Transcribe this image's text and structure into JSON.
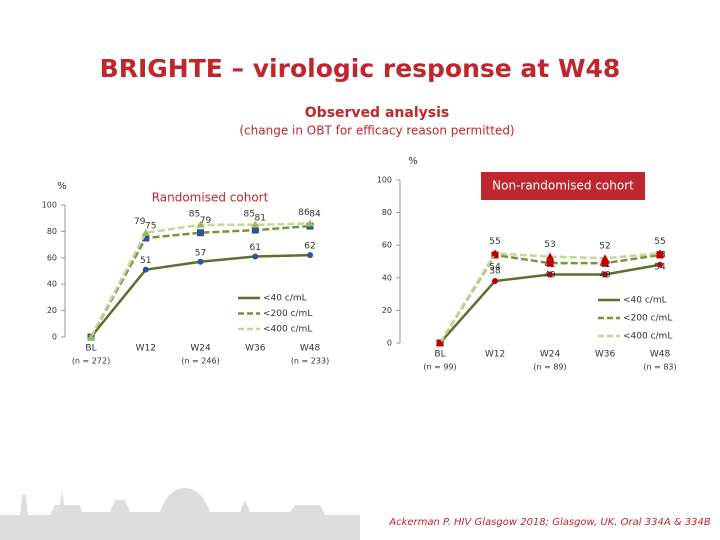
{
  "slide": {
    "title": "BRIGHTE – virologic response at W48",
    "subtitle": "Observed analysis",
    "note": "(change in OBT for efficacy reason permitted)",
    "citation": "Ackerman P. HIV Glasgow 2018; Glasgow, UK. Oral 334A & 334B"
  },
  "chart_data": [
    {
      "type": "line",
      "title": "Randomised cohort",
      "y_label": "%",
      "categories": [
        "BL",
        "W12",
        "W24",
        "W36",
        "W48"
      ],
      "n_labels": [
        "(n = 272)",
        null,
        "(n = 246)",
        null,
        "(n = 233)"
      ],
      "ylim": [
        0,
        100
      ],
      "yticks": [
        0,
        20,
        40,
        60,
        80,
        100
      ],
      "series": [
        {
          "name": "<40 c/mL",
          "color": "#5f6e2e",
          "marker": "circle",
          "marker_color": "#2f5597",
          "line_style": "solid",
          "values": [
            0,
            51,
            57,
            61,
            62
          ]
        },
        {
          "name": "<200 c/mL",
          "color": "#77933c",
          "marker": "square",
          "marker_color": "#2f5597",
          "line_style": "dashed",
          "values": [
            0,
            75,
            79,
            81,
            84
          ]
        },
        {
          "name": "<400 c/mL",
          "color": "#c3d69b",
          "marker": "triangle",
          "marker_color": "#9bbb59",
          "line_style": "dashed",
          "values": [
            0,
            79,
            85,
            85,
            86
          ]
        }
      ]
    },
    {
      "type": "line",
      "title": "Non-randomised cohort",
      "y_label": "%",
      "categories": [
        "BL",
        "W12",
        "W24",
        "W36",
        "W48"
      ],
      "n_labels": [
        "(n = 99)",
        null,
        "(n = 89)",
        null,
        "(n = 83)"
      ],
      "ylim": [
        0,
        100
      ],
      "yticks": [
        0,
        20,
        40,
        60,
        80,
        100
      ],
      "series": [
        {
          "name": "<40 c/mL",
          "color": "#5f6e2e",
          "marker": "circle",
          "marker_color": "#c00000",
          "line_style": "solid",
          "values": [
            0,
            38,
            42,
            42,
            48
          ]
        },
        {
          "name": "<200 c/mL",
          "color": "#77933c",
          "marker": "square",
          "marker_color": "#c00000",
          "line_style": "dashed",
          "values": [
            0,
            54,
            49,
            49,
            54
          ]
        },
        {
          "name": "<400 c/mL",
          "color": "#c3d69b",
          "marker": "triangle",
          "marker_color": "#c00000",
          "line_style": "dashed",
          "values": [
            0,
            55,
            53,
            52,
            55
          ]
        }
      ]
    }
  ]
}
